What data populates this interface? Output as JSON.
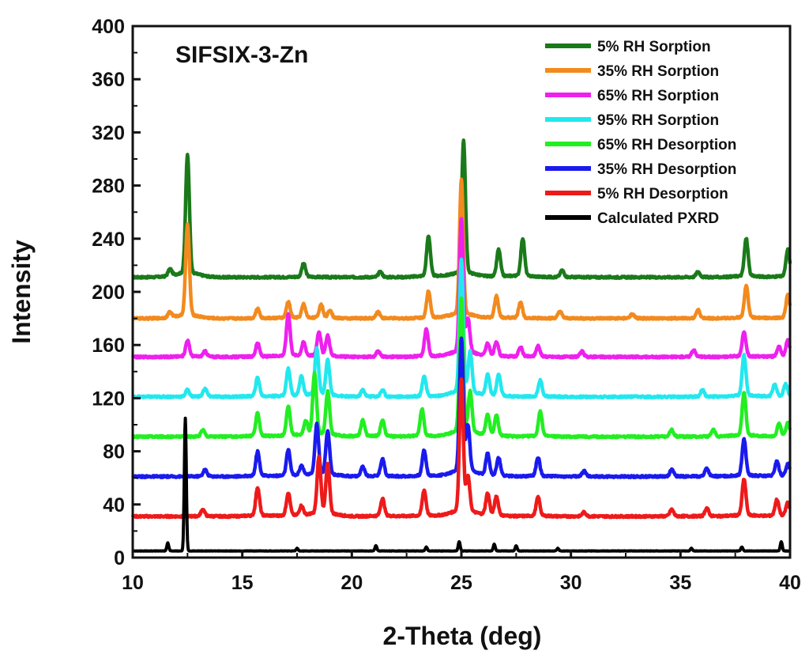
{
  "chart_data": {
    "type": "line",
    "title": "SIFSIX-3-Zn",
    "xlabel": "2-Theta (deg)",
    "ylabel": "Intensity",
    "xlim": [
      10,
      40
    ],
    "ylim": [
      0,
      400
    ],
    "x_ticks": [
      "10",
      "15",
      "20",
      "25",
      "30",
      "35",
      "40"
    ],
    "y_ticks": [
      "0",
      "40",
      "80",
      "120",
      "160",
      "200",
      "240",
      "280",
      "320",
      "360",
      "400"
    ],
    "grid": false,
    "legend_position": "top-right",
    "series": [
      {
        "name": "5% RH Sorption",
        "color": "#1a7a1a",
        "baseline": 211,
        "peaks": [
          [
            11.7,
            5
          ],
          [
            12.5,
            89
          ],
          [
            17.8,
            10
          ],
          [
            21.3,
            4
          ],
          [
            23.5,
            30
          ],
          [
            25.1,
            99
          ],
          [
            26.7,
            20
          ],
          [
            27.8,
            28
          ],
          [
            29.6,
            5
          ],
          [
            35.8,
            4
          ],
          [
            38.0,
            28
          ],
          [
            39.9,
            20
          ]
        ]
      },
      {
        "name": "35% RH Sorption",
        "color": "#f28a1e",
        "baseline": 180,
        "peaks": [
          [
            11.7,
            4
          ],
          [
            12.5,
            68
          ],
          [
            15.7,
            7
          ],
          [
            17.1,
            12
          ],
          [
            17.8,
            10
          ],
          [
            18.6,
            10
          ],
          [
            19.0,
            6
          ],
          [
            21.2,
            5
          ],
          [
            23.5,
            20
          ],
          [
            25.0,
            100
          ],
          [
            26.6,
            16
          ],
          [
            27.7,
            12
          ],
          [
            29.5,
            5
          ],
          [
            32.8,
            3
          ],
          [
            35.8,
            6
          ],
          [
            38.0,
            24
          ],
          [
            39.9,
            17
          ]
        ]
      },
      {
        "name": "65% RH Sorption",
        "color": "#ee20ee",
        "baseline": 151,
        "peaks": [
          [
            12.5,
            12
          ],
          [
            13.3,
            4
          ],
          [
            15.7,
            10
          ],
          [
            17.1,
            31
          ],
          [
            17.8,
            10
          ],
          [
            18.5,
            18
          ],
          [
            18.9,
            15
          ],
          [
            21.2,
            4
          ],
          [
            23.4,
            20
          ],
          [
            25.0,
            99
          ],
          [
            25.3,
            25
          ],
          [
            26.2,
            9
          ],
          [
            26.6,
            11
          ],
          [
            27.7,
            7
          ],
          [
            28.5,
            8
          ],
          [
            30.5,
            4
          ],
          [
            35.6,
            5
          ],
          [
            37.9,
            18
          ],
          [
            39.5,
            7
          ],
          [
            39.9,
            12
          ]
        ]
      },
      {
        "name": "95% RH Sorption",
        "color": "#22e8ee",
        "baseline": 121,
        "peaks": [
          [
            12.5,
            5
          ],
          [
            13.3,
            6
          ],
          [
            15.7,
            14
          ],
          [
            17.1,
            20
          ],
          [
            17.7,
            14
          ],
          [
            18.4,
            34
          ],
          [
            18.9,
            26
          ],
          [
            20.5,
            5
          ],
          [
            21.4,
            5
          ],
          [
            23.3,
            15
          ],
          [
            25.0,
            99
          ],
          [
            25.4,
            30
          ],
          [
            26.2,
            15
          ],
          [
            26.7,
            16
          ],
          [
            28.6,
            12
          ],
          [
            36.0,
            5
          ],
          [
            37.9,
            30
          ],
          [
            39.3,
            9
          ],
          [
            39.8,
            9
          ]
        ]
      },
      {
        "name": "65% RH Desorption",
        "color": "#22ee22",
        "baseline": 91,
        "peaks": [
          [
            13.2,
            5
          ],
          [
            15.7,
            17
          ],
          [
            17.1,
            22
          ],
          [
            17.9,
            10
          ],
          [
            18.3,
            45
          ],
          [
            18.9,
            32
          ],
          [
            20.5,
            12
          ],
          [
            21.4,
            12
          ],
          [
            23.2,
            20
          ],
          [
            25.0,
            99
          ],
          [
            25.4,
            30
          ],
          [
            26.2,
            15
          ],
          [
            26.6,
            15
          ],
          [
            28.6,
            18
          ],
          [
            34.6,
            5
          ],
          [
            36.5,
            5
          ],
          [
            37.9,
            32
          ],
          [
            39.5,
            9
          ],
          [
            39.9,
            10
          ]
        ]
      },
      {
        "name": "35% RH Desorption",
        "color": "#1a1aee",
        "baseline": 61,
        "peaks": [
          [
            13.3,
            5
          ],
          [
            15.7,
            18
          ],
          [
            17.1,
            19
          ],
          [
            17.7,
            7
          ],
          [
            18.4,
            37
          ],
          [
            18.9,
            32
          ],
          [
            20.5,
            7
          ],
          [
            21.4,
            13
          ],
          [
            23.3,
            19
          ],
          [
            25.0,
            99
          ],
          [
            25.3,
            34
          ],
          [
            26.2,
            16
          ],
          [
            26.7,
            13
          ],
          [
            28.5,
            14
          ],
          [
            30.6,
            4
          ],
          [
            34.6,
            5
          ],
          [
            36.2,
            6
          ],
          [
            37.9,
            27
          ],
          [
            39.4,
            11
          ],
          [
            39.9,
            9
          ]
        ]
      },
      {
        "name": "5% RH Desorption",
        "color": "#ee1a1a",
        "baseline": 31,
        "peaks": [
          [
            13.2,
            5
          ],
          [
            15.7,
            21
          ],
          [
            17.1,
            17
          ],
          [
            17.7,
            7
          ],
          [
            18.5,
            42
          ],
          [
            18.9,
            37
          ],
          [
            21.4,
            13
          ],
          [
            23.3,
            19
          ],
          [
            25.0,
            99
          ],
          [
            25.3,
            26
          ],
          [
            26.2,
            16
          ],
          [
            26.6,
            14
          ],
          [
            28.5,
            14
          ],
          [
            30.6,
            3
          ],
          [
            34.6,
            5
          ],
          [
            36.2,
            6
          ],
          [
            37.9,
            27
          ],
          [
            39.4,
            12
          ],
          [
            39.9,
            10
          ]
        ]
      },
      {
        "name": "Calculated PXRD",
        "color": "#000000",
        "baseline": 5,
        "peaks": [
          [
            11.6,
            6
          ],
          [
            12.4,
            100
          ],
          [
            17.5,
            2
          ],
          [
            21.1,
            4
          ],
          [
            23.4,
            3
          ],
          [
            24.9,
            7
          ],
          [
            26.5,
            5
          ],
          [
            27.5,
            4
          ],
          [
            29.4,
            2
          ],
          [
            35.5,
            2
          ],
          [
            37.8,
            3
          ],
          [
            39.6,
            7
          ]
        ]
      }
    ]
  }
}
